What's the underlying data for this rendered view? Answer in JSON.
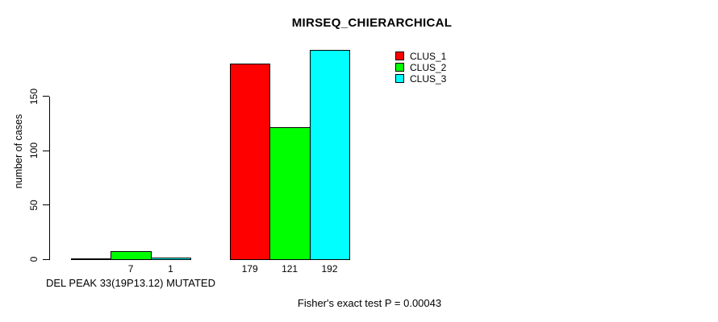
{
  "chart_data": {
    "type": "bar",
    "title": "MIRSEQ_CHIERARCHICAL",
    "ylabel": "number of cases",
    "group_label": "DEL PEAK 33(19P13.12) MUTATED",
    "annotation": "Fisher's exact test P = 0.00043",
    "yticks": [
      0,
      50,
      100,
      150
    ],
    "ylim": [
      0,
      205
    ],
    "grid": false,
    "legend_position": "top-right",
    "legend": [
      {
        "name": "CLUS_1",
        "color": "#FF0000"
      },
      {
        "name": "CLUS_2",
        "color": "#00FF00"
      },
      {
        "name": "CLUS_3",
        "color": "#00FFFF"
      }
    ],
    "series": [
      {
        "name": "CLUS_1",
        "color": "#FF0000",
        "values": [
          0,
          179
        ]
      },
      {
        "name": "CLUS_2",
        "color": "#00FF00",
        "values": [
          7,
          121
        ]
      },
      {
        "name": "CLUS_3",
        "color": "#00FFFF",
        "values": [
          1,
          192
        ]
      }
    ],
    "bar_labels": [
      [
        "",
        "7",
        "1"
      ],
      [
        "179",
        "121",
        "192"
      ]
    ],
    "axis_color": "#000000",
    "background_color": "#FFFFFF"
  }
}
